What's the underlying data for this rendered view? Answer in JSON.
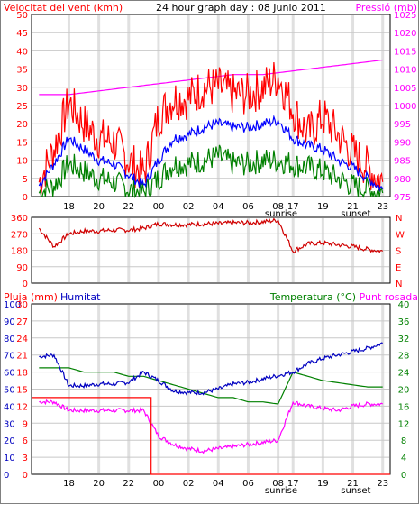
{
  "colors": {
    "wind": "#ff0000",
    "wind_avg": "#0000ff",
    "wind_gust_low": "#008000",
    "pressure": "#ff00ff",
    "direction": "#d00000",
    "rain": "#ff0000",
    "humidity": "#0000c0",
    "temperature": "#008000",
    "dewpoint": "#ff00ff",
    "grid": "#c8c8c8",
    "frame": "#000000"
  },
  "chart_data": [
    {
      "type": "line",
      "title": "24 hour graph day : 08 Junio 2011",
      "ylabel_left": "Velocitat del vent (kmh)",
      "ylabel_right": "Pressió (mb)",
      "yticks_left": [
        "0",
        "5",
        "10",
        "15",
        "20",
        "25",
        "30",
        "35",
        "40",
        "45",
        "50"
      ],
      "yticks_right": [
        "975",
        "980",
        "985",
        "990",
        "995",
        "1000",
        "1005",
        "1010",
        "1015",
        "1020",
        "1025"
      ],
      "xticks": [
        "18",
        "20",
        "22",
        "00",
        "02",
        "04",
        "06",
        "08",
        "17",
        "19",
        "21",
        "23"
      ],
      "markers": [
        "sunrise",
        "sunset"
      ],
      "ylim_left": [
        0,
        50
      ],
      "ylim_right": [
        975,
        1025
      ],
      "x_hours": [
        15.5,
        16.5,
        17.5,
        18.5,
        19.5,
        20.5,
        21.5,
        22.5,
        23.5,
        24.5,
        25.5,
        26.5,
        27.5,
        28.5,
        29.5,
        30.5,
        31.5,
        32.5,
        33.5,
        34.5,
        35.5,
        36.5,
        37.5,
        38.5
      ],
      "series": [
        {
          "key": "gust",
          "values": [
            4,
            13,
            26,
            20,
            16,
            15,
            10,
            6,
            22,
            27,
            27,
            30,
            30,
            28,
            28,
            30,
            33,
            24,
            17,
            22,
            17,
            12,
            8,
            4
          ]
        },
        {
          "key": "avg",
          "values": [
            3,
            9,
            16,
            13,
            10,
            9,
            6,
            3,
            10,
            16,
            17,
            19,
            20,
            19,
            19,
            20,
            21,
            16,
            14,
            13,
            10,
            8,
            5,
            2
          ]
        },
        {
          "key": "low",
          "values": [
            1,
            3,
            9,
            7,
            5,
            4,
            2,
            1,
            5,
            9,
            9,
            10,
            11,
            9,
            9,
            10,
            10,
            9,
            8,
            7,
            5,
            3,
            2,
            1
          ]
        },
        {
          "key": "pressure",
          "values": [
            1003,
            1003,
            1003,
            1003.5,
            1004,
            1004.5,
            1005,
            1005.5,
            1006,
            1006.5,
            1007,
            1007.5,
            1008,
            1008.5,
            1008.5,
            1008.5,
            1009,
            1009.5,
            1010,
            1010.5,
            1011,
            1011.5,
            1012,
            1012.5
          ]
        }
      ]
    },
    {
      "type": "line",
      "title": "",
      "yticks_left": [
        "0",
        "90",
        "180",
        "270",
        "360"
      ],
      "yticks_right": [
        "N",
        "E",
        "S",
        "W",
        "N"
      ],
      "ylim": [
        0,
        360
      ],
      "x_hours": [
        15.5,
        16.5,
        17.5,
        18.5,
        19.5,
        20.5,
        21.5,
        22.5,
        23.5,
        24.5,
        25.5,
        26.5,
        27.5,
        28.5,
        29.5,
        30.5,
        31.5,
        32.5,
        33.5,
        34.5,
        35.5,
        36.5,
        37.5,
        38.5
      ],
      "series": [
        {
          "key": "direction",
          "values": [
            300,
            200,
            270,
            285,
            285,
            290,
            290,
            300,
            325,
            320,
            320,
            325,
            325,
            330,
            330,
            335,
            345,
            175,
            215,
            220,
            210,
            200,
            185,
            175
          ]
        }
      ]
    },
    {
      "type": "line",
      "ylabels": [
        "Pluja (mm)",
        "Humitat",
        "Temperatura (°C)",
        "Punt rosada"
      ],
      "yticks_rain": [
        "0",
        "1",
        "2",
        "3",
        "4",
        "5",
        "6",
        "7",
        "8",
        "9",
        "10"
      ],
      "yticks_humidity": [
        "0",
        "10",
        "20",
        "30",
        "40",
        "50",
        "60",
        "70",
        "80",
        "90",
        "100"
      ],
      "yticks_mid": [
        "0",
        "3",
        "6",
        "9",
        "12",
        "15",
        "18",
        "21",
        "24",
        "27",
        "30"
      ],
      "yticks_right": [
        "0",
        "4",
        "8",
        "12",
        "16",
        "20",
        "24",
        "28",
        "32",
        "36",
        "40"
      ],
      "ylim_rain": [
        0,
        10
      ],
      "ylim_humidity": [
        0,
        100
      ],
      "ylim_temp": [
        0,
        40
      ],
      "x_hours": [
        15.5,
        16.5,
        17.5,
        18.5,
        19.5,
        20.5,
        21.5,
        22.5,
        23.5,
        24.5,
        25.5,
        26.5,
        27.5,
        28.5,
        29.5,
        30.5,
        31.5,
        32.5,
        33.5,
        34.5,
        35.5,
        36.5,
        37.5,
        38.5
      ],
      "series": [
        {
          "key": "humidity",
          "values": [
            69,
            70,
            52,
            52,
            53,
            53,
            54,
            60,
            55,
            49,
            48,
            48,
            50,
            53,
            54,
            56,
            58,
            60,
            65,
            68,
            70,
            72,
            74,
            77
          ]
        },
        {
          "key": "temperature",
          "values": [
            25,
            25,
            25,
            24,
            24,
            24,
            23,
            23,
            22,
            21,
            20,
            19,
            18,
            18,
            17,
            17,
            16.5,
            24,
            23,
            22,
            21.5,
            21,
            20.5,
            20.5
          ]
        },
        {
          "key": "dewpoint",
          "values": [
            17,
            17,
            15,
            15,
            15,
            15,
            15,
            15,
            9,
            7,
            6,
            5.5,
            6,
            6.5,
            7,
            7.5,
            8,
            17,
            16,
            15.5,
            15,
            16,
            16.5,
            16.5
          ]
        },
        {
          "key": "rain",
          "values": [
            4.5,
            4.5,
            4.5,
            4.5,
            4.5,
            4.5,
            4.5,
            4.5,
            0,
            0,
            0,
            0,
            0,
            0,
            0,
            0,
            0,
            0,
            0,
            0,
            0,
            0,
            0,
            0
          ]
        }
      ]
    }
  ]
}
